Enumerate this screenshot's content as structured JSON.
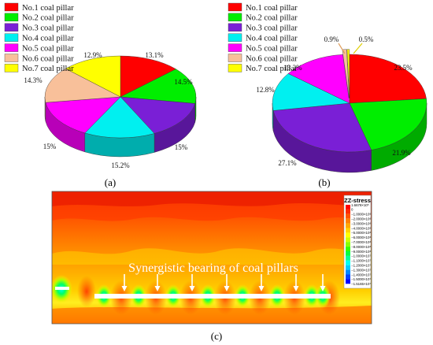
{
  "chart_data": [
    {
      "type": "pie",
      "panel_label": "(a)",
      "categories": [
        "No.1 coal pillar",
        "No.2 coal pillar",
        "No.3 coal pillar",
        "No.4 coal pillar",
        "No.5 coal pillar",
        "No.6 coal pillar",
        "No.7 coal pillar"
      ],
      "values": [
        13.1,
        14.5,
        15,
        15.2,
        15,
        14.3,
        12.9
      ],
      "value_labels": [
        "13.1%",
        "14.5%",
        "15%",
        "15.2%",
        "15%",
        "14.3%",
        "12.9%"
      ],
      "colors": [
        "#ff0000",
        "#00ee00",
        "#7a1fd6",
        "#00f0f0",
        "#ff00ff",
        "#f8c09a",
        "#ffff00"
      ],
      "legend": "top-left",
      "three_d": true
    },
    {
      "type": "pie",
      "panel_label": "(b)",
      "categories": [
        "No.1 coal pillar",
        "No.2 coal pillar",
        "No.3 coal pillar",
        "No.4 coal pillar",
        "No.5 coal pillar",
        "No.6 coal pillar",
        "No.7 coal pillar"
      ],
      "values": [
        23.5,
        21.9,
        27.1,
        12.8,
        13.2,
        0.9,
        0.5
      ],
      "value_labels": [
        "23.5%",
        "21.9%",
        "27.1%",
        "12.8%",
        "13.2%",
        "0.9%",
        "0.5%"
      ],
      "colors": [
        "#ff0000",
        "#00ee00",
        "#7a1fd6",
        "#00f0f0",
        "#ff00ff",
        "#f8c09a",
        "#ffff00"
      ],
      "legend": "top-left",
      "three_d": true,
      "exploded": [
        5,
        6
      ]
    },
    {
      "type": "heatmap",
      "panel_label": "(c)",
      "annotation": "Synergistic bearing of coal pillars",
      "colorbar": {
        "title": "ZZ-stress",
        "labels": [
          "1.6678×10⁵",
          "0",
          "−1.0000×10⁶",
          "−2.0000×10⁶",
          "−3.0000×10⁶",
          "−4.0000×10⁶",
          "−5.0000×10⁶",
          "−6.0000×10⁶",
          "−7.0000×10⁶",
          "−8.0000×10⁶",
          "−9.0000×10⁶",
          "−1.0000×10⁷",
          "−1.1000×10⁷",
          "−1.2000×10⁷",
          "−1.3000×10⁷",
          "−1.4000×10⁷",
          "−1.5000×10⁷",
          "−1.5165×10⁷"
        ],
        "colors": [
          "#ff0000",
          "#ff2a00",
          "#ff5500",
          "#ff7f00",
          "#ffaa00",
          "#ffd400",
          "#ffff00",
          "#ccff00",
          "#88ff00",
          "#33ff00",
          "#00ff44",
          "#00ff99",
          "#00ffee",
          "#00ccff",
          "#0088ff",
          "#0044ff",
          "#0000ff"
        ]
      }
    }
  ]
}
